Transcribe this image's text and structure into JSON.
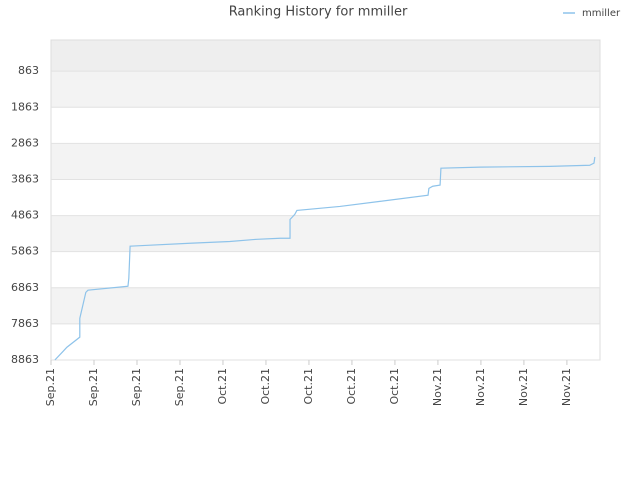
{
  "chart_data": {
    "type": "line",
    "title": "Ranking History for mmiller",
    "x": [
      0.09,
      0.26,
      0.37,
      0.67,
      0.67,
      0.81,
      0.86,
      1.79,
      1.81,
      1.84,
      2.19,
      3.23,
      4.16,
      4.79,
      5.33,
      5.56,
      5.56,
      5.67,
      5.72,
      6.72,
      7.65,
      8.77,
      8.79,
      8.88,
      9.05,
      9.07,
      9.98,
      11.6,
      12.53,
      12.63,
      12.65
    ],
    "series": [
      {
        "name": "mmiller",
        "color": "#8ec3ea",
        "values": [
          8863,
          8650,
          8510,
          8230,
          7710,
          6990,
          6930,
          6820,
          6600,
          5710,
          5690,
          5630,
          5580,
          5520,
          5490,
          5490,
          4970,
          4830,
          4720,
          4610,
          4470,
          4300,
          4110,
          4050,
          4020,
          3550,
          3520,
          3500,
          3470,
          3410,
          3240
        ]
      }
    ],
    "xlim": [
      0,
      12.77
    ],
    "xticks": [
      {
        "value": 0,
        "label": "Sep.21"
      },
      {
        "value": 1,
        "label": "Sep.21"
      },
      {
        "value": 2,
        "label": "Sep.21"
      },
      {
        "value": 3,
        "label": "Sep.21"
      },
      {
        "value": 4,
        "label": "Oct.21"
      },
      {
        "value": 5,
        "label": "Oct.21"
      },
      {
        "value": 6,
        "label": "Oct.21"
      },
      {
        "value": 7,
        "label": "Oct.21"
      },
      {
        "value": 8,
        "label": "Oct.21"
      },
      {
        "value": 9,
        "label": "Nov.21"
      },
      {
        "value": 10,
        "label": "Nov.21"
      },
      {
        "value": 11,
        "label": "Nov.21"
      },
      {
        "value": 12,
        "label": "Nov.21"
      }
    ],
    "ylim": [
      8863,
      0
    ],
    "yticks": [
      863,
      1863,
      2863,
      3863,
      4863,
      5863,
      6863,
      7863,
      8863
    ],
    "legend": "top-right"
  }
}
